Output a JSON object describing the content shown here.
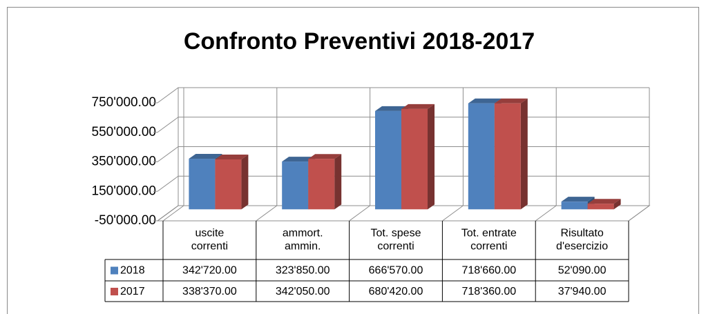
{
  "chart_data": {
    "type": "bar3d",
    "title": "Confronto Preventivi 2018-2017",
    "categories": [
      "uscite\ncorrenti",
      "ammort.\nammin.",
      "Tot. spese\ncorrenti",
      "Tot. entrate\ncorrenti",
      "Risultato\nd'esercizio"
    ],
    "series": [
      {
        "name": "2018",
        "color": "#4f81bd",
        "values": [
          342720,
          323850,
          666570,
          718660,
          52090
        ],
        "value_labels": [
          "342'720.00",
          "323'850.00",
          "666'570.00",
          "718'660.00",
          "52'090.00"
        ]
      },
      {
        "name": "2017",
        "color": "#c0504d",
        "values": [
          338370,
          342050,
          680420,
          718360,
          37940
        ],
        "value_labels": [
          "338'370.00",
          "342'050.00",
          "680'420.00",
          "718'360.00",
          "37'940.00"
        ]
      }
    ],
    "ylim": [
      -50000,
      750000
    ],
    "yticks": [
      {
        "value": -50000,
        "label": "-50'000.00"
      },
      {
        "value": 150000,
        "label": "150'000.00"
      },
      {
        "value": 350000,
        "label": "350'000.00"
      },
      {
        "value": 550000,
        "label": "550'000.00"
      },
      {
        "value": 750000,
        "label": "750'000.00"
      }
    ],
    "grid": true,
    "data_table": true
  }
}
